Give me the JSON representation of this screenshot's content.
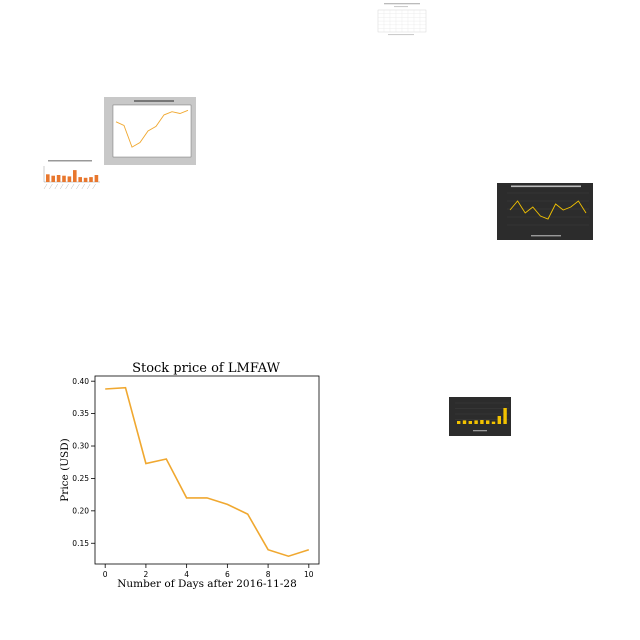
{
  "colors": {
    "line": "#f0a830",
    "axis": "#000000",
    "thumb_bar": "#e8772e",
    "thumb_gray_bg": "#c8c8c8",
    "thumb_dark_bg": "#2c2c2c",
    "thumb_yellow": "#f2c200"
  },
  "chart_data": [
    {
      "type": "line",
      "title": "Stock price of LMFAW",
      "xlabel": "Number of Days after 2016-11-28",
      "ylabel": "Price (USD)",
      "xlim": [
        -0.5,
        10.5
      ],
      "ylim": [
        0.118,
        0.408
      ],
      "x_ticks": [
        0,
        2,
        4,
        6,
        8,
        10
      ],
      "y_ticks": [
        0.15,
        0.2,
        0.25,
        0.3,
        0.35,
        0.4
      ],
      "y_tick_labels": [
        "0.15",
        "0.20",
        "0.25",
        "0.30",
        "0.35",
        "0.40"
      ],
      "grid": false,
      "x": [
        0,
        1,
        2,
        3,
        4,
        5,
        6,
        7,
        8,
        9,
        10
      ],
      "values": [
        0.388,
        0.39,
        0.273,
        0.28,
        0.22,
        0.22,
        0.21,
        0.195,
        0.14,
        0.13,
        0.14
      ]
    },
    {
      "type": "line",
      "title": "Stock price of BMY in 2000",
      "values": [
        0.7,
        0.62,
        0.15,
        0.25,
        0.5,
        0.6,
        0.85,
        0.92,
        0.88,
        0.95
      ]
    },
    {
      "type": "bar",
      "title": "% Share of Florida population in 1990",
      "values": [
        0.55,
        0.45,
        0.5,
        0.45,
        0.4,
        0.85,
        0.35,
        0.3,
        0.35,
        0.5
      ]
    },
    {
      "type": "line",
      "title": "Monthly count of Deaths in Wyndham in 2012 (for age 61+)",
      "values": [
        0.5,
        0.8,
        0.4,
        0.6,
        0.3,
        0.2,
        0.7,
        0.5,
        0.6,
        0.8,
        0.4
      ]
    },
    {
      "type": "bar",
      "values": [
        0.15,
        0.18,
        0.15,
        0.18,
        0.2,
        0.18,
        0.12,
        0.4,
        0.8
      ]
    },
    {
      "type": "table"
    }
  ]
}
